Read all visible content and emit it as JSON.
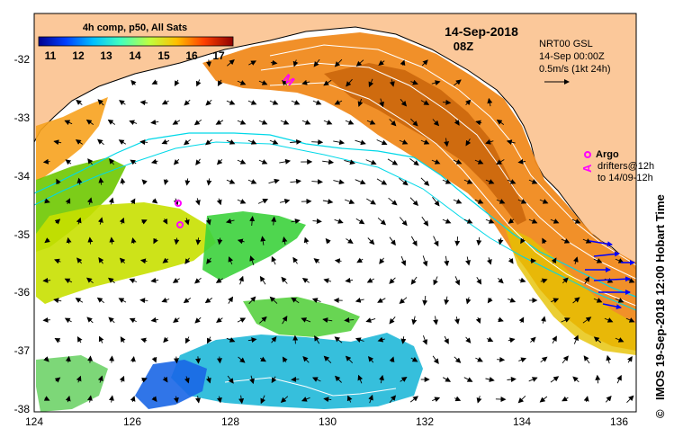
{
  "map": {
    "legend_title": "4h comp, p50, All Sats",
    "colorbar_ticks": [
      "11",
      "12",
      "13",
      "14",
      "15",
      "16",
      "17"
    ],
    "colorbar_colors": [
      "#00008f",
      "#0040ff",
      "#00bfff",
      "#40ffbf",
      "#bfff40",
      "#ffbf00",
      "#ff4000",
      "#8f0000"
    ],
    "date": "14-Sep-2018",
    "time": "08Z",
    "current_model": "NRT00 GSL",
    "current_time": "14-Sep 00:00Z",
    "scale_label": "0.5m/s (1kt 24h)",
    "argo_label": "Argo",
    "drifters_label_1": "drifters@12h",
    "drifters_label_2": "to 14/09-12h",
    "argo_marker_letter_1": "M",
    "argo_marker_letter_2": "A",
    "credit": "IMOS 19-Sep-2018 12:00 Hobart Time",
    "copyright": "©",
    "x_ticks": [
      "124",
      "126",
      "128",
      "130",
      "132",
      "134",
      "136"
    ],
    "y_ticks": [
      "-32",
      "-33",
      "-34",
      "-35",
      "-36",
      "-37",
      "-38"
    ],
    "colors": {
      "land": "#fbc89a",
      "coast": "#000000",
      "isobath": "#00d8e8",
      "argo": "#ff00ff",
      "drifter": "#0000ff"
    }
  }
}
